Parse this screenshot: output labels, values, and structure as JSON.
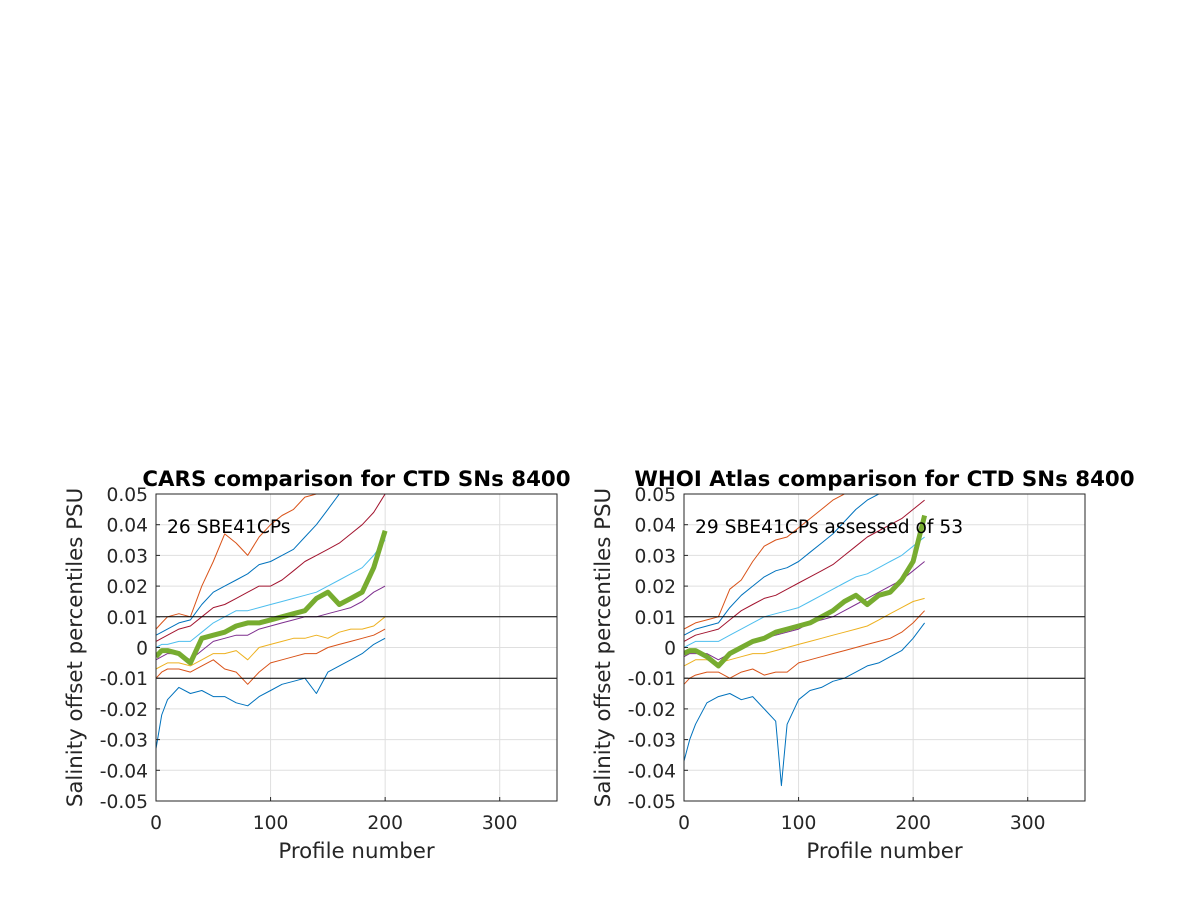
{
  "chart_data": [
    {
      "type": "line",
      "title": "CARS comparison for CTD SNs 8400",
      "xlabel": "Profile number",
      "ylabel": "Salinity offset percentiles PSU",
      "annotation": "26 SBE41CPs",
      "xlim": [
        0,
        350
      ],
      "ylim": [
        -0.05,
        0.05
      ],
      "xticks": [
        "0",
        "100",
        "200",
        "300"
      ],
      "yticks": [
        "-0.05",
        "-0.04",
        "-0.03",
        "-0.02",
        "-0.01",
        "0",
        "0.01",
        "0.02",
        "0.03",
        "0.04",
        "0.05"
      ],
      "grid": true,
      "reference_lines": [
        0.01,
        -0.01
      ],
      "series": [
        {
          "color": "#0072BD",
          "x": [
            0,
            5,
            10,
            20,
            30,
            40,
            50,
            60,
            70,
            80,
            90,
            100,
            110,
            120,
            130,
            140,
            150,
            160,
            170,
            180,
            190,
            200
          ],
          "y": [
            -0.033,
            -0.022,
            -0.017,
            -0.013,
            -0.015,
            -0.014,
            -0.016,
            -0.016,
            -0.018,
            -0.019,
            -0.016,
            -0.014,
            -0.012,
            -0.011,
            -0.01,
            -0.015,
            -0.008,
            -0.006,
            -0.004,
            -0.002,
            0.001,
            0.003
          ]
        },
        {
          "color": "#D95319",
          "x": [
            0,
            5,
            10,
            20,
            30,
            40,
            50,
            60,
            70,
            80,
            90,
            100,
            110,
            120,
            130,
            140,
            150,
            160,
            170,
            180,
            190,
            200
          ],
          "y": [
            -0.01,
            -0.008,
            -0.007,
            -0.007,
            -0.008,
            -0.006,
            -0.004,
            -0.007,
            -0.008,
            -0.012,
            -0.008,
            -0.005,
            -0.004,
            -0.003,
            -0.002,
            -0.002,
            0.0,
            0.001,
            0.002,
            0.003,
            0.004,
            0.006
          ]
        },
        {
          "color": "#EDB120",
          "x": [
            0,
            5,
            10,
            20,
            30,
            40,
            50,
            60,
            70,
            80,
            90,
            100,
            110,
            120,
            130,
            140,
            150,
            160,
            170,
            180,
            190,
            200
          ],
          "y": [
            -0.007,
            -0.006,
            -0.005,
            -0.005,
            -0.006,
            -0.004,
            -0.002,
            -0.002,
            -0.001,
            -0.004,
            0.0,
            0.001,
            0.002,
            0.003,
            0.003,
            0.004,
            0.003,
            0.005,
            0.006,
            0.006,
            0.007,
            0.01
          ]
        },
        {
          "color": "#7E2F8E",
          "x": [
            0,
            5,
            10,
            20,
            30,
            40,
            50,
            60,
            70,
            80,
            90,
            100,
            110,
            120,
            130,
            140,
            150,
            160,
            170,
            180,
            190,
            200
          ],
          "y": [
            -0.004,
            -0.003,
            -0.002,
            -0.002,
            -0.004,
            -0.001,
            0.002,
            0.003,
            0.004,
            0.004,
            0.006,
            0.007,
            0.008,
            0.009,
            0.01,
            0.01,
            0.011,
            0.012,
            0.013,
            0.015,
            0.018,
            0.02
          ]
        },
        {
          "color": "#4DBEEE",
          "x": [
            0,
            5,
            10,
            20,
            30,
            40,
            50,
            60,
            70,
            80,
            90,
            100,
            110,
            120,
            130,
            140,
            150,
            160,
            170,
            180,
            190,
            200
          ],
          "y": [
            0.0,
            0.001,
            0.001,
            0.002,
            0.002,
            0.005,
            0.008,
            0.01,
            0.012,
            0.012,
            0.013,
            0.014,
            0.015,
            0.016,
            0.017,
            0.018,
            0.02,
            0.022,
            0.024,
            0.026,
            0.03,
            0.035
          ]
        },
        {
          "color": "#A2142F",
          "x": [
            0,
            5,
            10,
            20,
            30,
            40,
            50,
            60,
            70,
            80,
            90,
            100,
            110,
            120,
            130,
            140,
            150,
            160,
            170,
            180,
            190,
            200
          ],
          "y": [
            0.002,
            0.003,
            0.004,
            0.006,
            0.007,
            0.01,
            0.013,
            0.014,
            0.016,
            0.018,
            0.02,
            0.02,
            0.022,
            0.025,
            0.028,
            0.03,
            0.032,
            0.034,
            0.037,
            0.04,
            0.044,
            0.05
          ]
        },
        {
          "color": "#0072BD",
          "x": [
            0,
            5,
            10,
            20,
            30,
            40,
            50,
            60,
            70,
            80,
            90,
            100,
            110,
            120,
            130,
            140,
            150,
            160,
            170,
            180,
            190,
            200
          ],
          "y": [
            0.004,
            0.005,
            0.006,
            0.008,
            0.009,
            0.014,
            0.018,
            0.02,
            0.022,
            0.024,
            0.027,
            0.028,
            0.03,
            0.032,
            0.036,
            0.04,
            0.045,
            0.05,
            0.05,
            0.05,
            0.05,
            0.05
          ]
        },
        {
          "color": "#D95319",
          "x": [
            0,
            5,
            10,
            20,
            30,
            40,
            50,
            60,
            70,
            80,
            90,
            100,
            110,
            120,
            130,
            140,
            150,
            160,
            170,
            180,
            190,
            200
          ],
          "y": [
            0.006,
            0.008,
            0.01,
            0.011,
            0.01,
            0.02,
            0.028,
            0.037,
            0.034,
            0.03,
            0.036,
            0.04,
            0.043,
            0.045,
            0.049,
            0.05,
            0.05,
            0.05,
            0.05,
            0.05,
            0.05,
            0.05
          ]
        },
        {
          "color": "#77AC30",
          "name_hidden": true,
          "thick": true,
          "x": [
            0,
            5,
            10,
            20,
            30,
            40,
            50,
            60,
            70,
            80,
            90,
            100,
            110,
            120,
            130,
            140,
            150,
            160,
            170,
            180,
            190,
            200
          ],
          "y": [
            -0.003,
            -0.001,
            -0.001,
            -0.002,
            -0.005,
            0.003,
            0.004,
            0.005,
            0.007,
            0.008,
            0.008,
            0.009,
            0.01,
            0.011,
            0.012,
            0.016,
            0.018,
            0.014,
            0.016,
            0.018,
            0.026,
            0.038
          ]
        }
      ]
    },
    {
      "type": "line",
      "title": "WHOI Atlas comparison for CTD SNs 8400",
      "xlabel": "Profile number",
      "ylabel": "Salinity offset percentiles PSU",
      "annotation": "29 SBE41CPs assessed of 53",
      "xlim": [
        0,
        350
      ],
      "ylim": [
        -0.05,
        0.05
      ],
      "xticks": [
        "0",
        "100",
        "200",
        "300"
      ],
      "yticks": [
        "-0.05",
        "-0.04",
        "-0.03",
        "-0.02",
        "-0.01",
        "0",
        "0.01",
        "0.02",
        "0.03",
        "0.04",
        "0.05"
      ],
      "grid": true,
      "reference_lines": [
        0.01,
        -0.01
      ],
      "series": [
        {
          "color": "#0072BD",
          "x": [
            0,
            5,
            10,
            20,
            30,
            40,
            50,
            60,
            70,
            80,
            85,
            90,
            100,
            110,
            120,
            130,
            140,
            150,
            160,
            170,
            180,
            190,
            200,
            210
          ],
          "y": [
            -0.037,
            -0.03,
            -0.025,
            -0.018,
            -0.016,
            -0.015,
            -0.017,
            -0.016,
            -0.02,
            -0.024,
            -0.045,
            -0.025,
            -0.017,
            -0.014,
            -0.013,
            -0.011,
            -0.01,
            -0.008,
            -0.006,
            -0.005,
            -0.003,
            -0.001,
            0.003,
            0.008
          ]
        },
        {
          "color": "#D95319",
          "x": [
            0,
            5,
            10,
            20,
            30,
            40,
            50,
            60,
            70,
            80,
            90,
            100,
            110,
            120,
            130,
            140,
            150,
            160,
            170,
            180,
            190,
            200,
            210
          ],
          "y": [
            -0.012,
            -0.01,
            -0.009,
            -0.008,
            -0.008,
            -0.01,
            -0.008,
            -0.007,
            -0.009,
            -0.008,
            -0.008,
            -0.005,
            -0.004,
            -0.003,
            -0.002,
            -0.001,
            0.0,
            0.001,
            0.002,
            0.003,
            0.005,
            0.008,
            0.012
          ]
        },
        {
          "color": "#EDB120",
          "x": [
            0,
            5,
            10,
            20,
            30,
            40,
            50,
            60,
            70,
            80,
            90,
            100,
            110,
            120,
            130,
            140,
            150,
            160,
            170,
            180,
            190,
            200,
            210
          ],
          "y": [
            -0.006,
            -0.005,
            -0.004,
            -0.004,
            -0.005,
            -0.004,
            -0.003,
            -0.002,
            -0.002,
            -0.001,
            0.0,
            0.001,
            0.002,
            0.003,
            0.004,
            0.005,
            0.006,
            0.007,
            0.009,
            0.011,
            0.013,
            0.015,
            0.016
          ]
        },
        {
          "color": "#7E2F8E",
          "x": [
            0,
            5,
            10,
            20,
            30,
            40,
            50,
            60,
            70,
            80,
            90,
            100,
            110,
            120,
            130,
            140,
            150,
            160,
            170,
            180,
            190,
            200,
            210
          ],
          "y": [
            -0.003,
            -0.002,
            -0.002,
            -0.002,
            -0.004,
            -0.002,
            0.0,
            0.002,
            0.003,
            0.004,
            0.005,
            0.006,
            0.008,
            0.009,
            0.01,
            0.012,
            0.014,
            0.016,
            0.018,
            0.02,
            0.022,
            0.025,
            0.028
          ]
        },
        {
          "color": "#4DBEEE",
          "x": [
            0,
            5,
            10,
            20,
            30,
            40,
            50,
            60,
            70,
            80,
            90,
            100,
            110,
            120,
            130,
            140,
            150,
            160,
            170,
            180,
            190,
            200,
            210
          ],
          "y": [
            0.0,
            0.001,
            0.002,
            0.002,
            0.002,
            0.004,
            0.006,
            0.008,
            0.01,
            0.011,
            0.012,
            0.013,
            0.015,
            0.017,
            0.019,
            0.021,
            0.023,
            0.024,
            0.026,
            0.028,
            0.03,
            0.033,
            0.036
          ]
        },
        {
          "color": "#A2142F",
          "x": [
            0,
            5,
            10,
            20,
            30,
            40,
            50,
            60,
            70,
            80,
            90,
            100,
            110,
            120,
            130,
            140,
            150,
            160,
            170,
            180,
            190,
            200,
            210
          ],
          "y": [
            0.002,
            0.003,
            0.004,
            0.005,
            0.006,
            0.009,
            0.012,
            0.014,
            0.016,
            0.017,
            0.019,
            0.021,
            0.023,
            0.025,
            0.027,
            0.03,
            0.033,
            0.036,
            0.038,
            0.04,
            0.042,
            0.045,
            0.048
          ]
        },
        {
          "color": "#0072BD",
          "x": [
            0,
            5,
            10,
            20,
            30,
            40,
            50,
            60,
            70,
            80,
            90,
            100,
            110,
            120,
            130,
            140,
            150,
            160,
            170,
            180,
            190,
            200,
            210
          ],
          "y": [
            0.004,
            0.005,
            0.006,
            0.007,
            0.008,
            0.013,
            0.017,
            0.02,
            0.023,
            0.025,
            0.026,
            0.028,
            0.031,
            0.034,
            0.037,
            0.041,
            0.045,
            0.048,
            0.05,
            0.05,
            0.05,
            0.05,
            0.05
          ]
        },
        {
          "color": "#D95319",
          "x": [
            0,
            5,
            10,
            20,
            30,
            40,
            50,
            60,
            70,
            80,
            90,
            100,
            110,
            120,
            130,
            140,
            150,
            160,
            170,
            180,
            190,
            200,
            210
          ],
          "y": [
            0.006,
            0.007,
            0.008,
            0.009,
            0.01,
            0.019,
            0.022,
            0.028,
            0.033,
            0.035,
            0.036,
            0.039,
            0.042,
            0.045,
            0.048,
            0.05,
            0.05,
            0.05,
            0.05,
            0.05,
            0.05,
            0.05,
            0.05
          ]
        },
        {
          "color": "#77AC30",
          "thick": true,
          "x": [
            0,
            5,
            10,
            20,
            30,
            40,
            50,
            60,
            70,
            80,
            90,
            100,
            110,
            120,
            130,
            140,
            150,
            160,
            170,
            180,
            190,
            200,
            210
          ],
          "y": [
            -0.002,
            -0.001,
            -0.001,
            -0.003,
            -0.006,
            -0.002,
            0.0,
            0.002,
            0.003,
            0.005,
            0.006,
            0.007,
            0.008,
            0.01,
            0.012,
            0.015,
            0.017,
            0.014,
            0.017,
            0.018,
            0.022,
            0.028,
            0.043
          ]
        }
      ]
    }
  ]
}
